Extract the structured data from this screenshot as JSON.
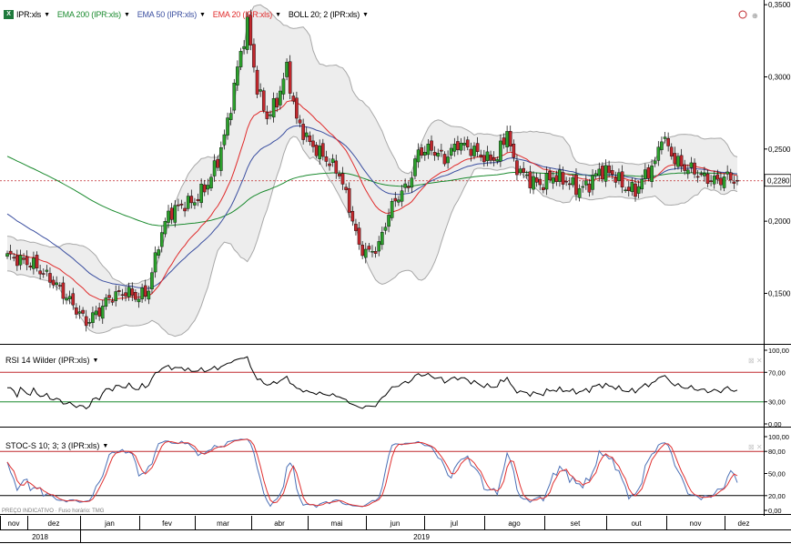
{
  "legend": {
    "symbol": "IPR:xls",
    "ema200": "EMA 200 (IPR:xls)",
    "ema50": "EMA 50 (IPR:xls)",
    "ema20": "EMA 20 (IPR:xls)",
    "boll": "BOLL 20; 2 (IPR:xls)"
  },
  "colors": {
    "up": "#2ca02c",
    "down": "#c0282d",
    "ema200": "#1a8a2e",
    "ema50": "#3b4fa0",
    "ema20": "#e02b2b",
    "boll": "#a8a8a8",
    "band_fill": "#ededed",
    "rsi_line": "#000000",
    "stoch_k": "#4a6fb5",
    "stoch_d": "#e03030",
    "level_high": "#c0282d",
    "level_low": "#1a8a2e"
  },
  "rsi_panel": {
    "title": "RSI 14 Wilder (IPR:xls)",
    "ticks": [
      "100,00",
      "70,00",
      "30,00",
      "0,00"
    ]
  },
  "stoch_panel": {
    "title": "STOC-S 10; 3; 3 (IPR:xls)",
    "ticks": [
      "100,00",
      "80,00",
      "50,00",
      "20,00",
      "0,00"
    ]
  },
  "footer_note": "PREÇO INDICATIVO · Fuso horário: TMG",
  "chart_data": {
    "type": "candlestick",
    "price_axis": {
      "ticks": [
        "0,3500",
        "0,3000",
        "0,2500",
        "0,2000",
        "0,1500"
      ],
      "range": [
        0.115,
        0.352
      ]
    },
    "last_price_label": "0,2280",
    "last_price": 0.228,
    "x_months": [
      "nov",
      "dez",
      "jan",
      "fev",
      "mar",
      "abr",
      "mai",
      "jun",
      "jul",
      "ago",
      "set",
      "out",
      "nov",
      "dez"
    ],
    "x_years": [
      "2018",
      "2019"
    ],
    "anchors": [
      [
        0,
        0.176
      ],
      [
        8,
        0.17
      ],
      [
        14,
        0.158
      ],
      [
        20,
        0.142
      ],
      [
        24,
        0.13
      ],
      [
        28,
        0.138
      ],
      [
        31,
        0.147
      ],
      [
        36,
        0.151
      ],
      [
        40,
        0.147
      ],
      [
        43,
        0.153
      ],
      [
        46,
        0.185
      ],
      [
        49,
        0.205
      ],
      [
        53,
        0.211
      ],
      [
        57,
        0.214
      ],
      [
        61,
        0.226
      ],
      [
        64,
        0.242
      ],
      [
        67,
        0.268
      ],
      [
        70,
        0.306
      ],
      [
        73,
        0.337
      ],
      [
        76,
        0.292
      ],
      [
        79,
        0.272
      ],
      [
        82,
        0.283
      ],
      [
        85,
        0.306
      ],
      [
        88,
        0.27
      ],
      [
        92,
        0.254
      ],
      [
        97,
        0.243
      ],
      [
        101,
        0.233
      ],
      [
        104,
        0.21
      ],
      [
        107,
        0.182
      ],
      [
        110,
        0.178
      ],
      [
        113,
        0.183
      ],
      [
        116,
        0.206
      ],
      [
        119,
        0.218
      ],
      [
        122,
        0.225
      ],
      [
        125,
        0.248
      ],
      [
        129,
        0.25
      ],
      [
        133,
        0.243
      ],
      [
        137,
        0.254
      ],
      [
        141,
        0.25
      ],
      [
        146,
        0.243
      ],
      [
        149,
        0.244
      ],
      [
        152,
        0.263
      ],
      [
        154,
        0.24
      ],
      [
        158,
        0.23
      ],
      [
        162,
        0.225
      ],
      [
        166,
        0.231
      ],
      [
        170,
        0.228
      ],
      [
        174,
        0.222
      ],
      [
        177,
        0.226
      ],
      [
        180,
        0.235
      ],
      [
        184,
        0.233
      ],
      [
        188,
        0.223
      ],
      [
        191,
        0.221
      ],
      [
        194,
        0.232
      ],
      [
        197,
        0.24
      ],
      [
        199,
        0.26
      ],
      [
        202,
        0.246
      ],
      [
        205,
        0.238
      ],
      [
        208,
        0.236
      ],
      [
        212,
        0.23
      ],
      [
        216,
        0.228
      ],
      [
        219,
        0.231
      ],
      [
        222,
        0.228
      ]
    ]
  }
}
